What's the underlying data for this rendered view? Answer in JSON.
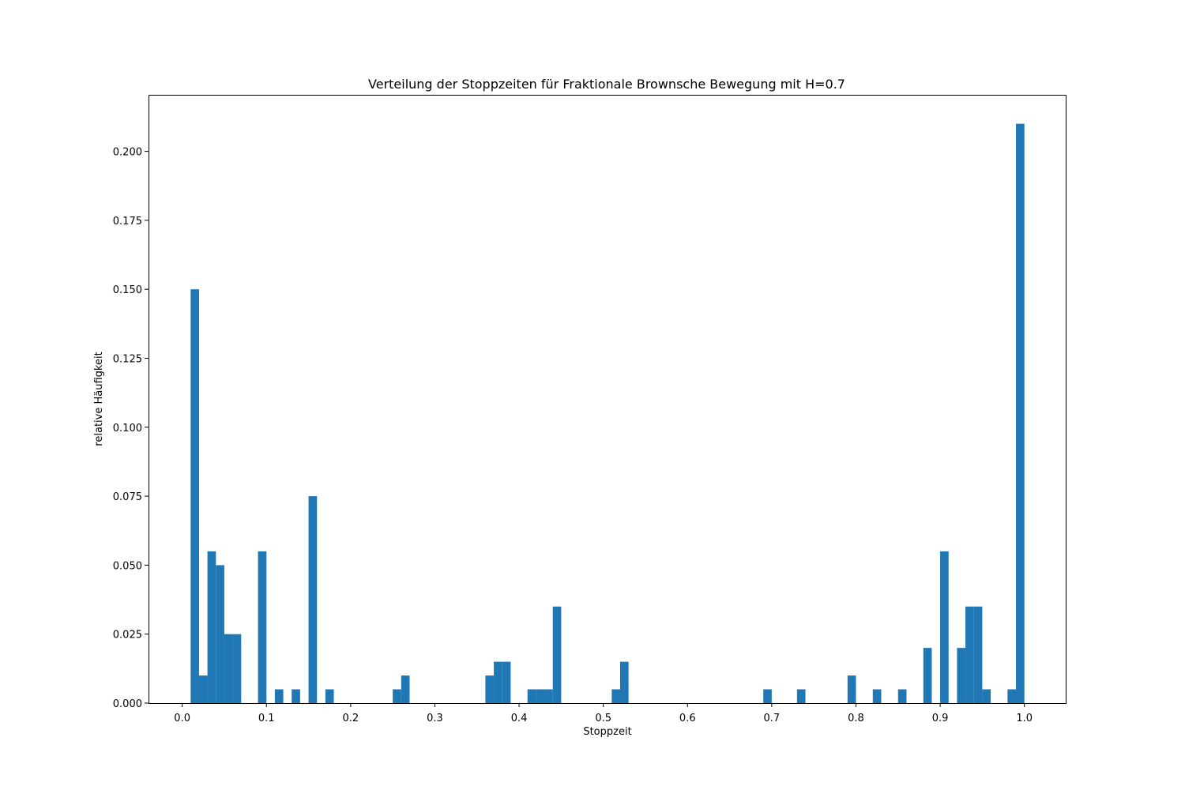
{
  "chart_data": {
    "type": "bar",
    "title": "Verteilung der Stoppzeiten für Fraktionale Brownsche Bewegung mit H=0.7",
    "xlabel": "Stoppzeit",
    "ylabel": "relative Häufigkeit",
    "xlim": [
      -0.04,
      1.05
    ],
    "ylim": [
      0,
      0.2205
    ],
    "xticks": [
      "0.0",
      "0.1",
      "0.2",
      "0.3",
      "0.4",
      "0.5",
      "0.6",
      "0.7",
      "0.8",
      "0.9",
      "1.0"
    ],
    "yticks": [
      "0.000",
      "0.025",
      "0.050",
      "0.075",
      "0.100",
      "0.125",
      "0.150",
      "0.175",
      "0.200"
    ],
    "bar_color": "#1f77b4",
    "grid": false,
    "bin_start": 0.0,
    "bin_end": 1.0,
    "bin_count": 100,
    "values": [
      0,
      0.15,
      0.01,
      0.055,
      0.05,
      0.025,
      0.025,
      0,
      0,
      0.055,
      0,
      0.005,
      0,
      0.005,
      0,
      0.075,
      0,
      0.005,
      0,
      0,
      0,
      0,
      0,
      0,
      0,
      0.005,
      0.01,
      0,
      0,
      0,
      0,
      0,
      0,
      0,
      0,
      0,
      0.01,
      0.015,
      0.015,
      0,
      0,
      0.005,
      0.005,
      0.005,
      0.035,
      0,
      0,
      0,
      0,
      0,
      0,
      0.005,
      0.015,
      0,
      0,
      0,
      0,
      0,
      0,
      0,
      0,
      0,
      0,
      0,
      0,
      0,
      0,
      0,
      0,
      0.005,
      0,
      0,
      0,
      0.005,
      0,
      0,
      0,
      0,
      0,
      0.01,
      0,
      0,
      0.005,
      0,
      0,
      0.005,
      0,
      0,
      0.02,
      0,
      0.055,
      0,
      0.02,
      0.035,
      0.035,
      0.005,
      0,
      0,
      0.005,
      0.21
    ]
  }
}
